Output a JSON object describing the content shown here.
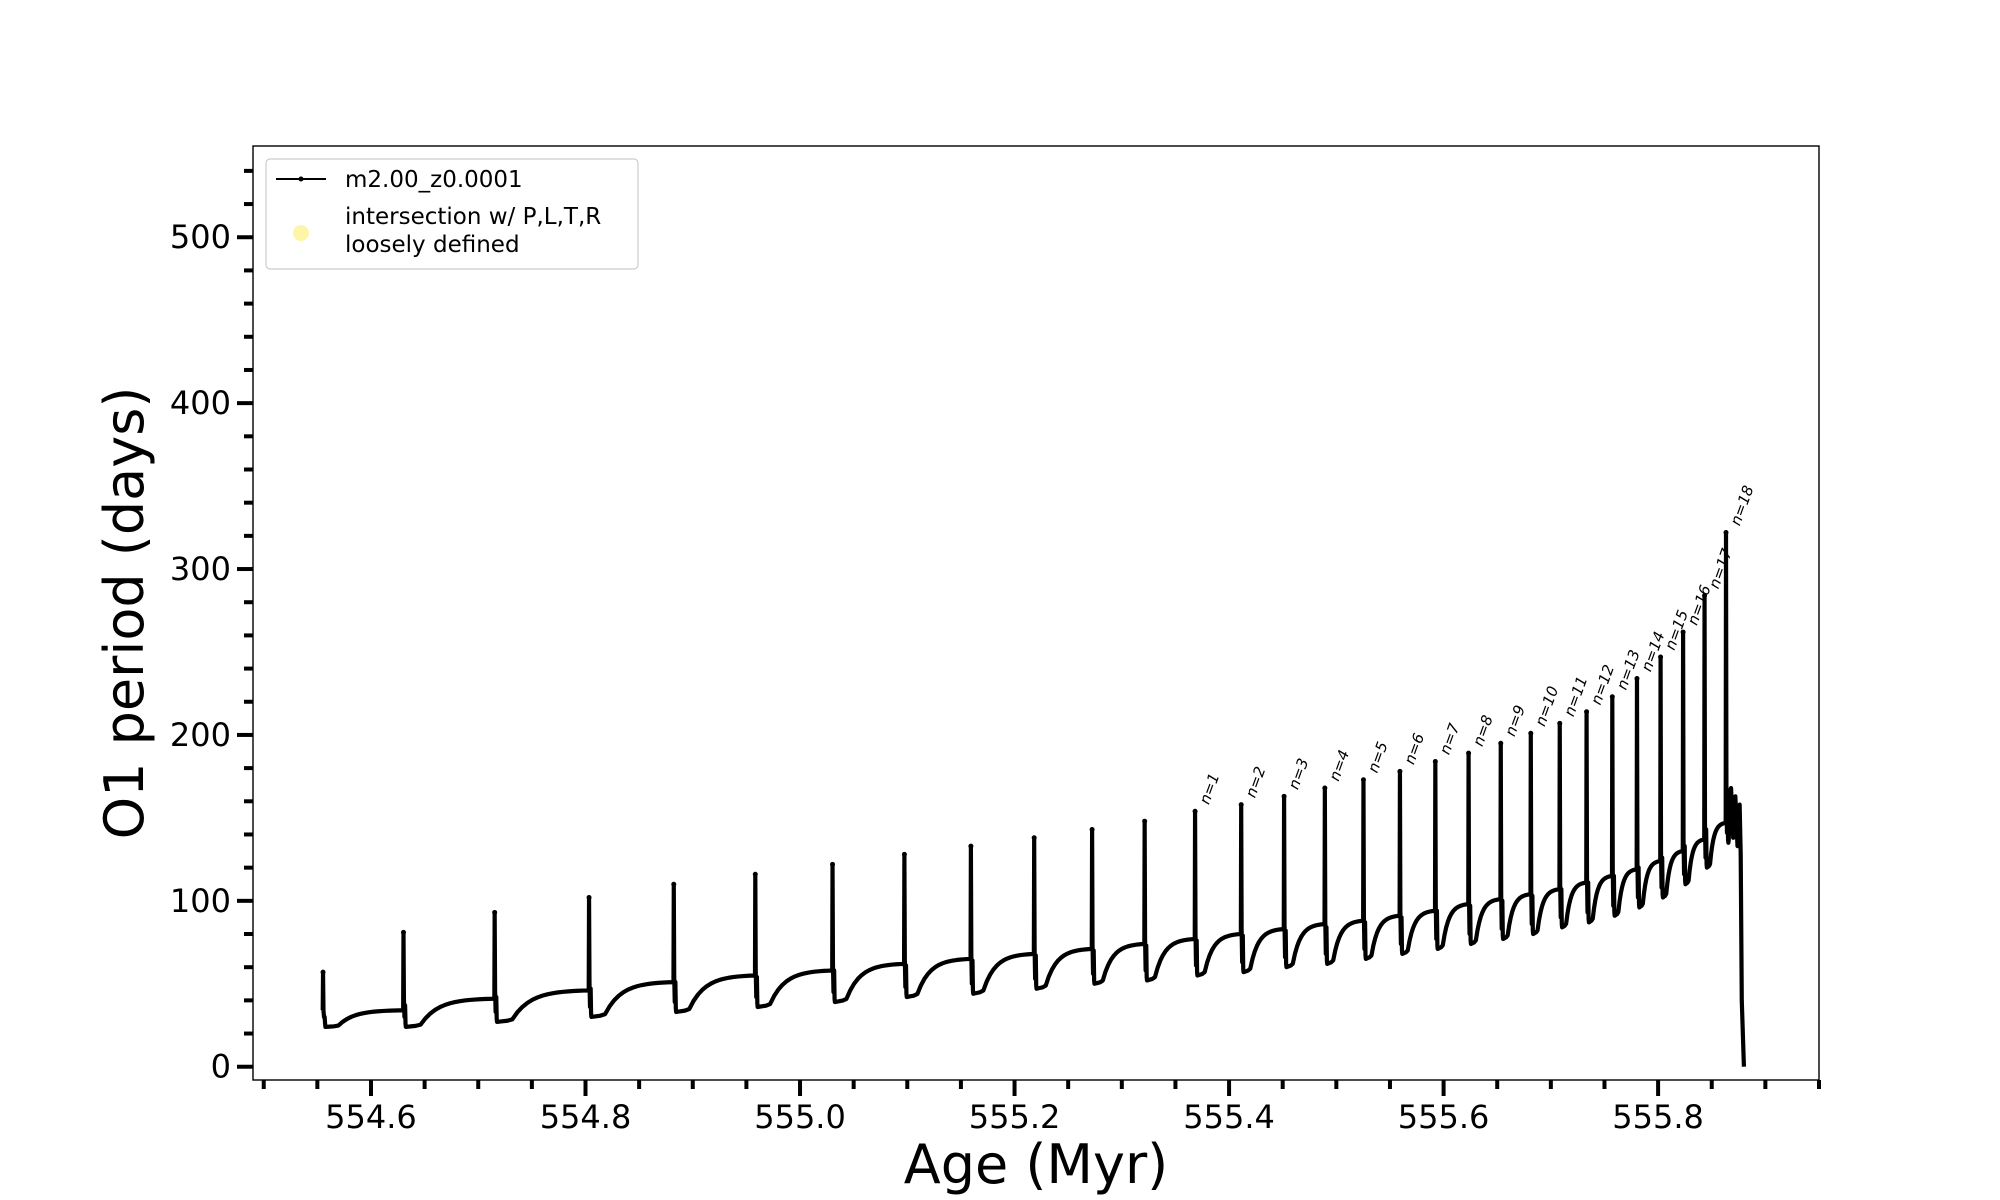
{
  "chart_data": {
    "type": "line",
    "title": "",
    "xlabel": "Age (Myr)",
    "ylabel": "O1 period (days)",
    "xlim": [
      554.49,
      555.95
    ],
    "ylim": [
      -8,
      555
    ],
    "x_ticks": [
      554.6,
      554.8,
      555.0,
      555.2,
      555.4,
      555.6,
      555.8
    ],
    "x_tick_labels": [
      "554.6",
      "554.8",
      "555.0",
      "555.2",
      "555.4",
      "555.6",
      "555.8"
    ],
    "x_minor_step": 0.05,
    "y_ticks": [
      0,
      100,
      200,
      300,
      400,
      500
    ],
    "y_tick_labels": [
      "0",
      "100",
      "200",
      "300",
      "400",
      "500"
    ],
    "y_minor_step": 20,
    "grid": false,
    "legend_position": "top-left",
    "legend": [
      {
        "label": "m2.00_z0.0001",
        "marker": "line-dot",
        "color": "#000000"
      },
      {
        "label_lines": [
          "intersection w/ P,L,T,R",
          "loosely defined"
        ],
        "marker": "circle",
        "color": "#fff5a8"
      }
    ],
    "series": [
      {
        "name": "m2.00_z0.0001",
        "color": "#000000",
        "pulses": [
          {
            "x": 554.555,
            "peak": 57,
            "base": 34,
            "dip": 24
          },
          {
            "x": 554.63,
            "peak": 81,
            "base": 41,
            "dip": 24
          },
          {
            "x": 554.715,
            "peak": 93,
            "base": 46,
            "dip": 27
          },
          {
            "x": 554.803,
            "peak": 102,
            "base": 51,
            "dip": 30
          },
          {
            "x": 554.882,
            "peak": 110,
            "base": 55,
            "dip": 33
          },
          {
            "x": 554.958,
            "peak": 116,
            "base": 58,
            "dip": 36
          },
          {
            "x": 555.03,
            "peak": 122,
            "base": 62,
            "dip": 39
          },
          {
            "x": 555.097,
            "peak": 128,
            "base": 65,
            "dip": 42
          },
          {
            "x": 555.159,
            "peak": 133,
            "base": 68,
            "dip": 44
          },
          {
            "x": 555.218,
            "peak": 138,
            "base": 71,
            "dip": 47
          },
          {
            "x": 555.272,
            "peak": 143,
            "base": 74,
            "dip": 50
          },
          {
            "x": 555.321,
            "peak": 148,
            "base": 77,
            "dip": 52
          },
          {
            "x": 555.368,
            "peak": 154,
            "base": 80,
            "dip": 55,
            "label": "n=1"
          },
          {
            "x": 555.411,
            "peak": 158,
            "base": 83,
            "dip": 57,
            "label": "n=2"
          },
          {
            "x": 555.451,
            "peak": 163,
            "base": 86,
            "dip": 60,
            "label": "n=3"
          },
          {
            "x": 555.489,
            "peak": 168,
            "base": 88,
            "dip": 62,
            "label": "n=4"
          },
          {
            "x": 555.525,
            "peak": 173,
            "base": 91,
            "dip": 65,
            "label": "n=5"
          },
          {
            "x": 555.559,
            "peak": 178,
            "base": 94,
            "dip": 68,
            "label": "n=6"
          },
          {
            "x": 555.592,
            "peak": 184,
            "base": 98,
            "dip": 71,
            "label": "n=7"
          },
          {
            "x": 555.623,
            "peak": 189,
            "base": 101,
            "dip": 74,
            "label": "n=8"
          },
          {
            "x": 555.653,
            "peak": 195,
            "base": 104,
            "dip": 77,
            "label": "n=9"
          },
          {
            "x": 555.681,
            "peak": 201,
            "base": 107,
            "dip": 80,
            "label": "n=10"
          },
          {
            "x": 555.708,
            "peak": 207,
            "base": 111,
            "dip": 84,
            "label": "n=11"
          },
          {
            "x": 555.733,
            "peak": 214,
            "base": 115,
            "dip": 87,
            "label": "n=12"
          },
          {
            "x": 555.757,
            "peak": 223,
            "base": 119,
            "dip": 91,
            "label": "n=13"
          },
          {
            "x": 555.78,
            "peak": 234,
            "base": 124,
            "dip": 96,
            "label": "n=14"
          },
          {
            "x": 555.802,
            "peak": 247,
            "base": 130,
            "dip": 102,
            "label": "n=15"
          },
          {
            "x": 555.823,
            "peak": 262,
            "base": 137,
            "dip": 110,
            "label": "n=16"
          },
          {
            "x": 555.843,
            "peak": 284,
            "base": 147,
            "dip": 120,
            "label": "n=17"
          },
          {
            "x": 555.863,
            "peak": 322,
            "base": 163,
            "dip": 135,
            "label": "n=18"
          }
        ],
        "tail": {
          "x_start": 555.868,
          "x_end": 555.88,
          "peak": 168,
          "end": 0
        }
      }
    ]
  }
}
